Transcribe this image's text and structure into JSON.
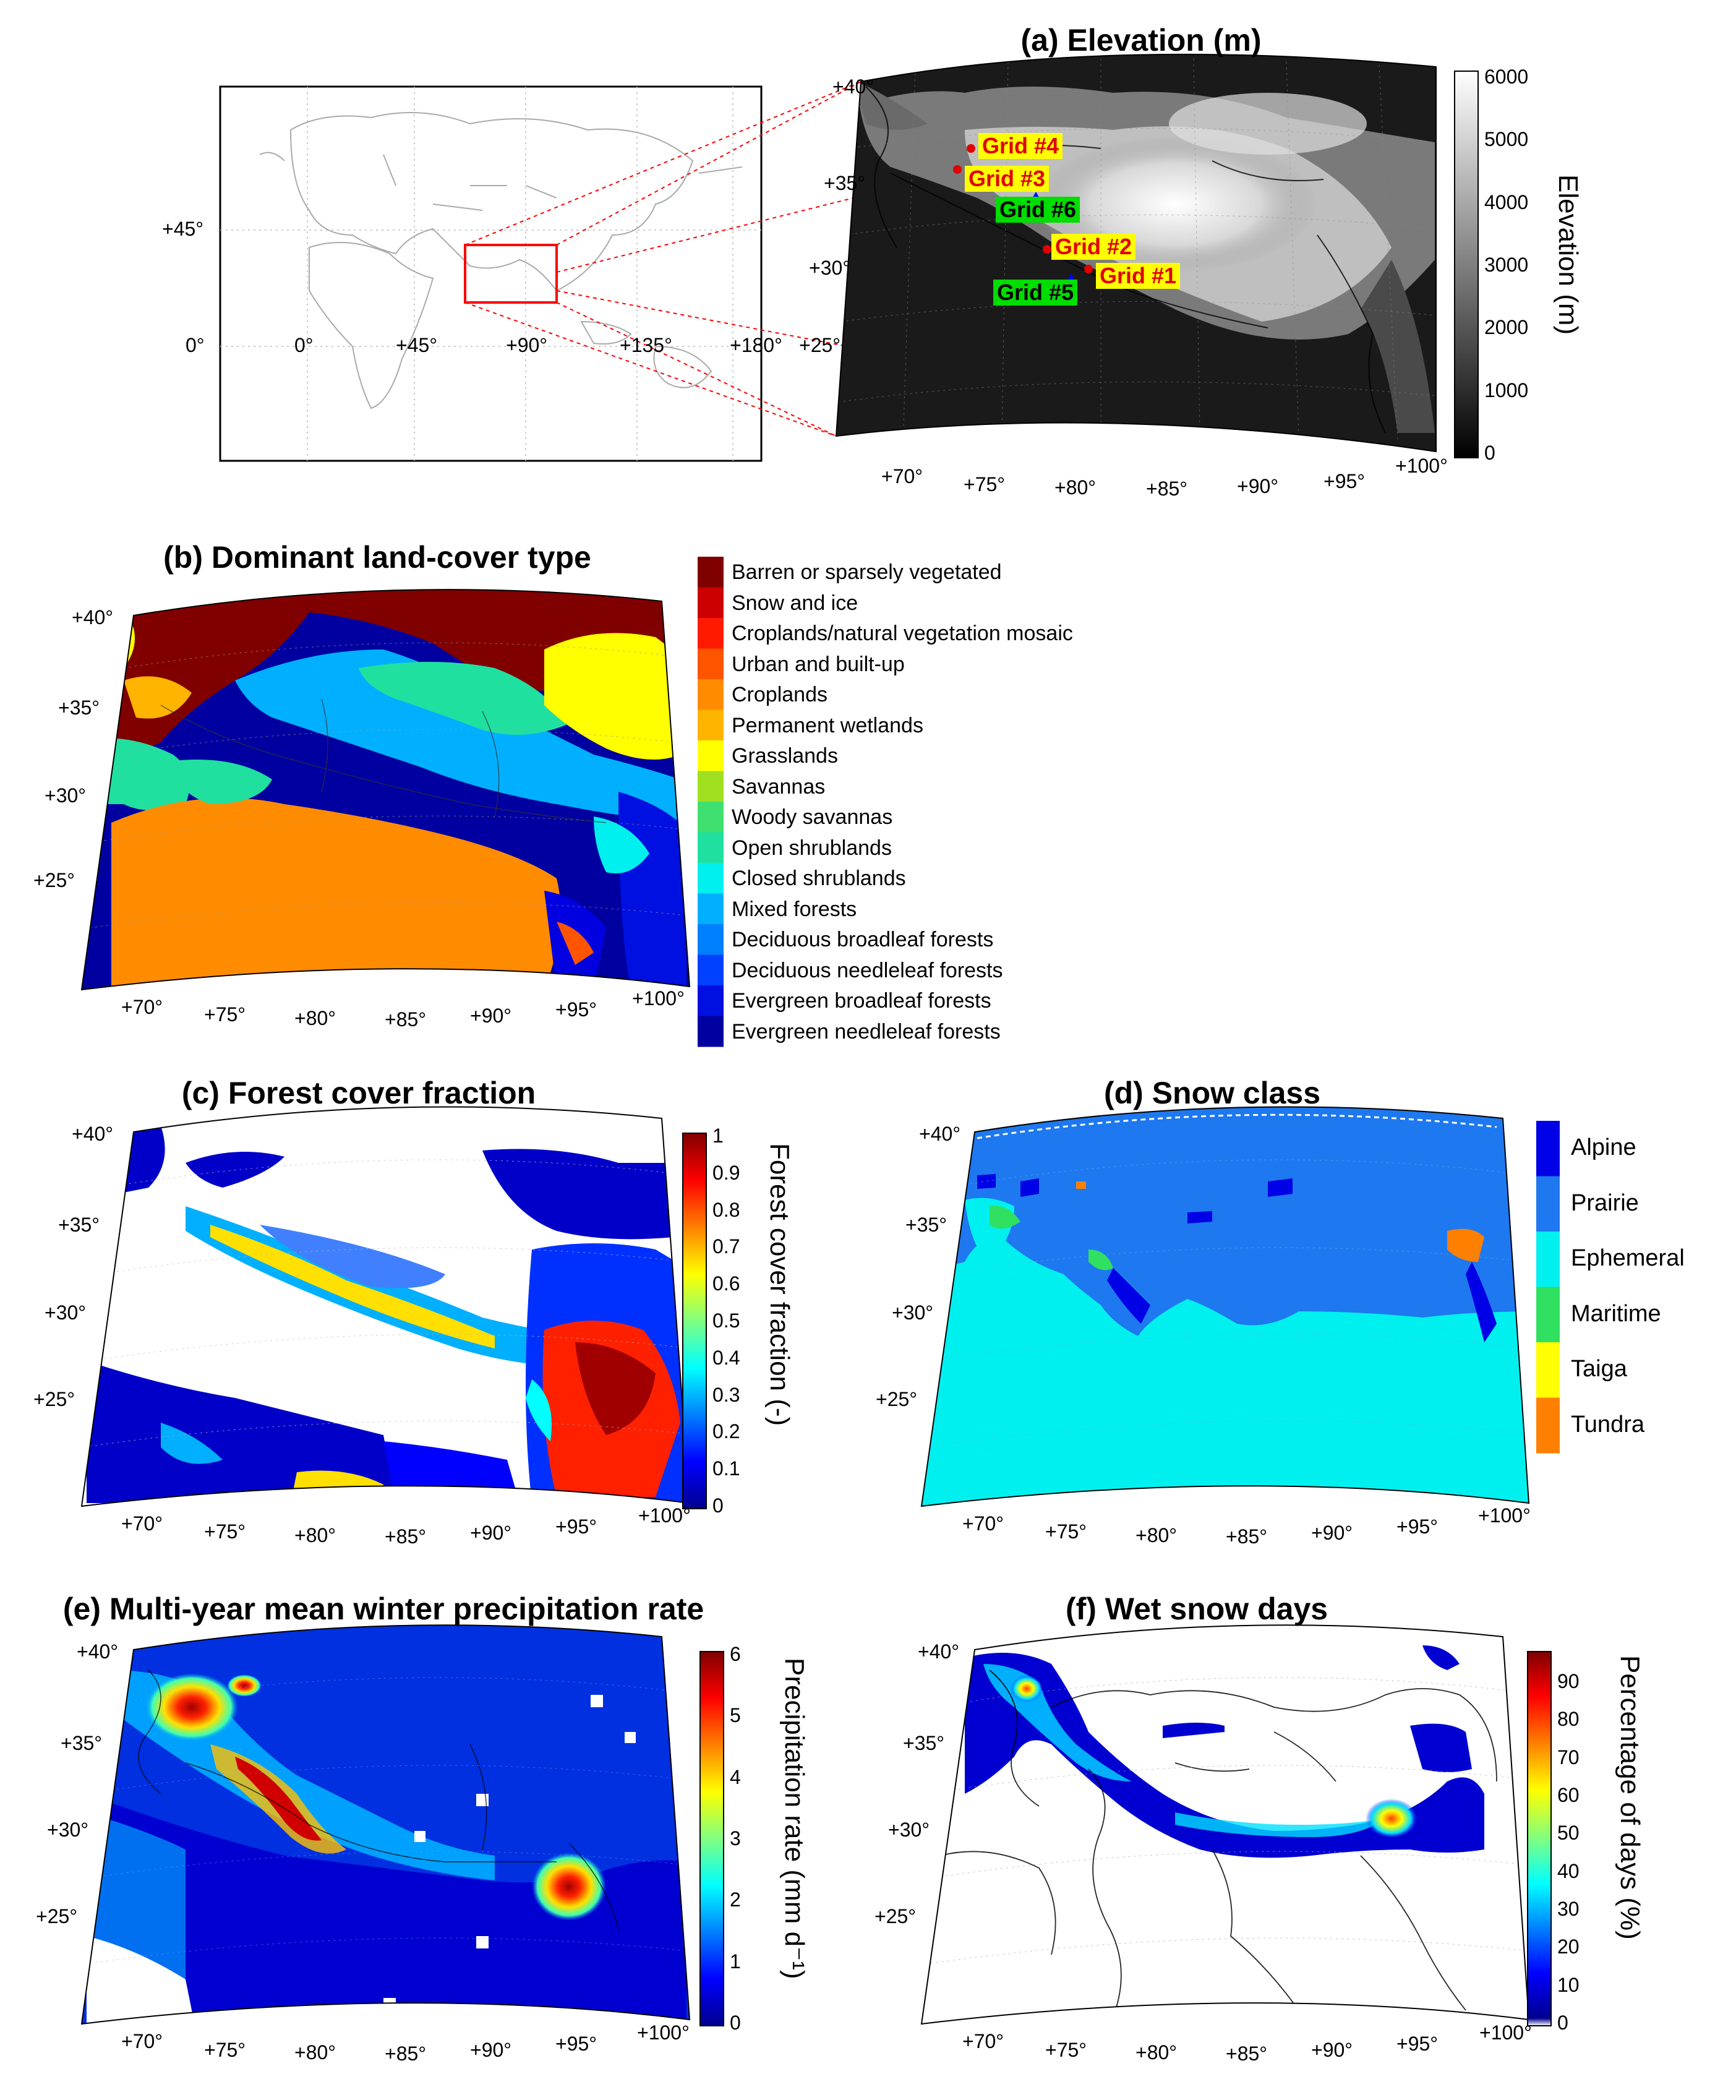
{
  "colors": {
    "jet": [
      "#00008f",
      "#0000ff",
      "#0080ff",
      "#00ffff",
      "#80ff80",
      "#ffff00",
      "#ff8000",
      "#ff0000",
      "#800000"
    ],
    "grid_label_yellow": "#ffff00",
    "grid_label_green": "#00dd00",
    "grid_label_text_red": "#e00000",
    "inset_box": "#ff0000"
  },
  "world_map": {
    "lat_labels": [
      "+45°",
      "0°"
    ],
    "lon_labels": [
      "0°",
      "+45°",
      "+90°",
      "+135°",
      "+180°"
    ]
  },
  "panel_a": {
    "title": "(a) Elevation (m)",
    "lat_labels": [
      "+40°",
      "+35°",
      "+30°",
      "+25°"
    ],
    "lon_labels": [
      "+70°",
      "+75°",
      "+80°",
      "+85°",
      "+90°",
      "+95°",
      "+100°"
    ],
    "colorbar": {
      "label": "Elevation (m)",
      "ticks": [
        "6000",
        "5000",
        "4000",
        "3000",
        "2000",
        "1000",
        "0"
      ],
      "range": [
        0,
        6000
      ],
      "colormap": "gray"
    },
    "grids": [
      {
        "label": "Grid #4",
        "style": "yellow"
      },
      {
        "label": "Grid #3",
        "style": "yellow"
      },
      {
        "label": "Grid #6",
        "style": "green"
      },
      {
        "label": "Grid #2",
        "style": "yellow"
      },
      {
        "label": "Grid #1",
        "style": "yellow"
      },
      {
        "label": "Grid #5",
        "style": "green"
      }
    ]
  },
  "panel_b": {
    "title": "(b) Dominant land-cover type",
    "lat_labels": [
      "+40°",
      "+35°",
      "+30°",
      "+25°"
    ],
    "lon_labels": [
      "+70°",
      "+75°",
      "+80°",
      "+85°",
      "+90°",
      "+95°",
      "+100°"
    ],
    "legend": [
      {
        "label": "Barren or sparsely vegetated",
        "color": "#800000"
      },
      {
        "label": "Snow and ice",
        "color": "#cc0000"
      },
      {
        "label": "Croplands/natural vegetation mosaic",
        "color": "#ff1a00"
      },
      {
        "label": "Urban and built-up",
        "color": "#ff5500"
      },
      {
        "label": "Croplands",
        "color": "#ff8c00"
      },
      {
        "label": "Permanent wetlands",
        "color": "#ffb400"
      },
      {
        "label": "Grasslands",
        "color": "#ffff00"
      },
      {
        "label": "Savannas",
        "color": "#a0e020"
      },
      {
        "label": "Woody savannas",
        "color": "#40e070"
      },
      {
        "label": "Open shrublands",
        "color": "#20e0a0"
      },
      {
        "label": "Closed shrublands",
        "color": "#00f0f0"
      },
      {
        "label": "Mixed forests",
        "color": "#00b0ff"
      },
      {
        "label": "Deciduous broadleaf forests",
        "color": "#0080ff"
      },
      {
        "label": "Deciduous needleleaf forests",
        "color": "#0040ff"
      },
      {
        "label": "Evergreen broadleaf forests",
        "color": "#0010e0"
      },
      {
        "label": "Evergreen needleleaf forests",
        "color": "#0000a0"
      }
    ]
  },
  "panel_c": {
    "title": "(c) Forest cover fraction",
    "lat_labels": [
      "+40°",
      "+35°",
      "+30°",
      "+25°"
    ],
    "lon_labels": [
      "+70°",
      "+75°",
      "+80°",
      "+85°",
      "+90°",
      "+95°",
      "+100°"
    ],
    "colorbar": {
      "label": "Forest cover fraction (-)",
      "ticks": [
        "1",
        "0.9",
        "0.8",
        "0.7",
        "0.6",
        "0.5",
        "0.4",
        "0.3",
        "0.2",
        "0.1",
        "0"
      ],
      "range": [
        0,
        1
      ],
      "colormap": "jet"
    }
  },
  "panel_d": {
    "title": "(d) Snow class",
    "lat_labels": [
      "+40°",
      "+35°",
      "+30°",
      "+25°"
    ],
    "lon_labels": [
      "+70°",
      "+75°",
      "+80°",
      "+85°",
      "+90°",
      "+95°",
      "+100°"
    ],
    "legend": [
      {
        "label": "Alpine",
        "color": "#0000e6"
      },
      {
        "label": "Prairie",
        "color": "#1e78f0"
      },
      {
        "label": "Ephemeral",
        "color": "#00f0f0"
      },
      {
        "label": "Maritime",
        "color": "#30e060"
      },
      {
        "label": "Taiga",
        "color": "#ffff00"
      },
      {
        "label": "Tundra",
        "color": "#ff8000"
      }
    ]
  },
  "panel_e": {
    "title": "(e) Multi-year mean winter precipitation rate",
    "lat_labels": [
      "+40°",
      "+35°",
      "+30°",
      "+25°"
    ],
    "lon_labels": [
      "+70°",
      "+75°",
      "+80°",
      "+85°",
      "+90°",
      "+95°",
      "+100°"
    ],
    "colorbar": {
      "label": "Precipitation rate (mm d⁻¹)",
      "ticks": [
        "6",
        "5",
        "4",
        "3",
        "2",
        "1",
        "0"
      ],
      "range": [
        0,
        6
      ],
      "colormap": "jet"
    }
  },
  "panel_f": {
    "title": "(f) Wet snow days",
    "lat_labels": [
      "+40°",
      "+35°",
      "+30°",
      "+25°"
    ],
    "lon_labels": [
      "+70°",
      "+75°",
      "+80°",
      "+85°",
      "+90°",
      "+95°",
      "+100°"
    ],
    "colorbar": {
      "label": "Percentage of days (%)",
      "ticks": [
        "90",
        "80",
        "70",
        "60",
        "50",
        "40",
        "30",
        "20",
        "10",
        "0"
      ],
      "range": [
        0,
        100
      ],
      "colormap": "jet"
    }
  }
}
